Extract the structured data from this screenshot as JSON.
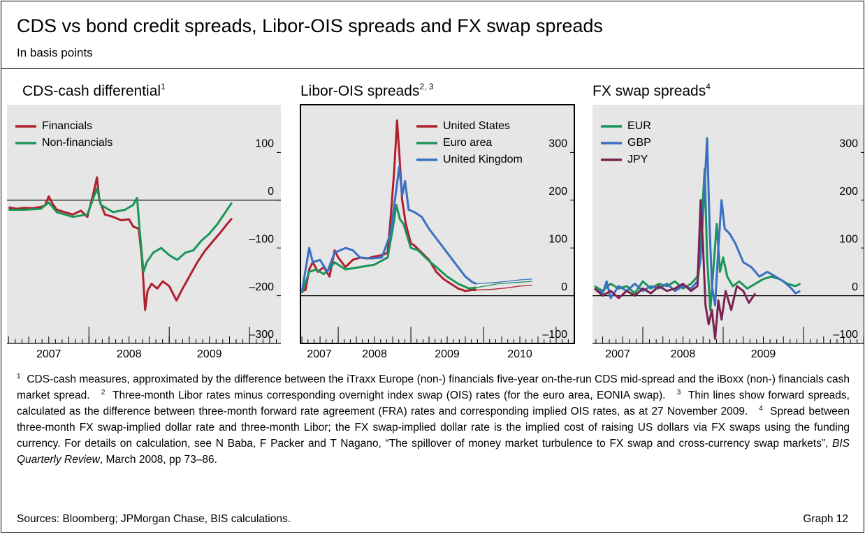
{
  "title": "CDS vs bond credit spreads, Libor-OIS spreads and FX swap spreads",
  "subtitle": "In basis points",
  "chart_data": [
    {
      "type": "line",
      "title": "CDS-cash differential",
      "title_note": "1",
      "xlim": [
        2006.98,
        2010.39
      ],
      "ylim": [
        -300,
        200
      ],
      "xticks": [
        {
          "value": 2007.5,
          "label": "2007"
        },
        {
          "value": 2008.5,
          "label": "2008"
        },
        {
          "value": 2009.5,
          "label": "2009"
        }
      ],
      "year_ticks": [
        2008,
        2009,
        2010
      ],
      "yticks": [
        {
          "value": -300,
          "label": "–300"
        },
        {
          "value": -200,
          "label": "–200"
        },
        {
          "value": -100,
          "label": "–100"
        },
        0,
        100
      ],
      "zero_line": true,
      "frame": false,
      "legend": "upper left",
      "series": [
        {
          "name": "Financials",
          "color": "#b01f2e",
          "x": [
            2007.0,
            2007.1,
            2007.2,
            2007.3,
            2007.4,
            2007.45,
            2007.5,
            2007.55,
            2007.6,
            2007.7,
            2007.8,
            2007.9,
            2007.98,
            2008.05,
            2008.1,
            2008.13,
            2008.2,
            2008.3,
            2008.4,
            2008.5,
            2008.55,
            2008.62,
            2008.66,
            2008.7,
            2008.73,
            2008.78,
            2008.85,
            2008.92,
            2009.0,
            2009.09,
            2009.15,
            2009.25,
            2009.35,
            2009.45,
            2009.55,
            2009.65,
            2009.72,
            2009.78
          ],
          "values": [
            -15,
            -18,
            -16,
            -17,
            -14,
            -12,
            8,
            -8,
            -20,
            -25,
            -30,
            -22,
            -35,
            10,
            48,
            0,
            -30,
            -35,
            -42,
            -40,
            -55,
            -60,
            -120,
            -230,
            -190,
            -175,
            -185,
            -170,
            -180,
            -210,
            -190,
            -160,
            -130,
            -105,
            -85,
            -65,
            -50,
            -38
          ]
        },
        {
          "name": "Non-financials",
          "color": "#1b9457",
          "x": [
            2007.0,
            2007.2,
            2007.4,
            2007.5,
            2007.6,
            2007.8,
            2007.98,
            2008.1,
            2008.15,
            2008.3,
            2008.45,
            2008.55,
            2008.6,
            2008.63,
            2008.68,
            2008.72,
            2008.8,
            2008.9,
            2009.0,
            2009.1,
            2009.2,
            2009.3,
            2009.4,
            2009.5,
            2009.6,
            2009.7,
            2009.78
          ],
          "values": [
            -20,
            -20,
            -18,
            -5,
            -25,
            -35,
            -30,
            25,
            -10,
            -25,
            -20,
            -10,
            5,
            -60,
            -150,
            -130,
            -110,
            -100,
            -115,
            -125,
            -110,
            -105,
            -85,
            -70,
            -50,
            -25,
            -5
          ]
        }
      ]
    },
    {
      "type": "line",
      "title": "Libor-OIS spreads",
      "title_note": "2, 3",
      "xlim": [
        2007.48,
        2011.25
      ],
      "ylim": [
        -100,
        400
      ],
      "xticks": [
        {
          "value": 2007.5,
          "label": "2007"
        },
        {
          "value": 2008.5,
          "label": "2008"
        },
        {
          "value": 2009.5,
          "label": "2009"
        },
        {
          "value": 2010.5,
          "label": "2010"
        }
      ],
      "year_ticks": [
        2008,
        2009,
        2010,
        2011
      ],
      "yticks": [
        {
          "value": -100,
          "label": "–100"
        },
        0,
        100,
        200,
        300
      ],
      "zero_line": true,
      "frame": true,
      "legend": "upper center",
      "series": [
        {
          "name": "United States",
          "color": "#b01f2e",
          "x": [
            2007.5,
            2007.55,
            2007.6,
            2007.65,
            2007.72,
            2007.8,
            2007.88,
            2007.95,
            2008.0,
            2008.1,
            2008.2,
            2008.3,
            2008.4,
            2008.5,
            2008.6,
            2008.68,
            2008.72,
            2008.77,
            2008.81,
            2008.84,
            2008.88,
            2008.93,
            2009.0,
            2009.05,
            2009.15,
            2009.25,
            2009.35,
            2009.45,
            2009.55,
            2009.65,
            2009.75,
            2009.85,
            2009.9
          ],
          "values": [
            10,
            12,
            55,
            70,
            50,
            60,
            40,
            95,
            80,
            60,
            75,
            80,
            78,
            82,
            85,
            90,
            160,
            260,
            367,
            300,
            200,
            150,
            110,
            105,
            90,
            75,
            50,
            35,
            25,
            15,
            10,
            12,
            12
          ],
          "forward": {
            "x": [
              2009.9,
              2010.1,
              2010.3,
              2010.5,
              2010.67
            ],
            "values": [
              12,
              13,
              16,
              20,
              22
            ]
          }
        },
        {
          "name": "Euro area",
          "color": "#1b9457",
          "x": [
            2007.5,
            2007.6,
            2007.7,
            2007.8,
            2007.9,
            2007.95,
            2008.1,
            2008.3,
            2008.5,
            2008.68,
            2008.75,
            2008.8,
            2008.85,
            2008.9,
            2009.0,
            2009.1,
            2009.2,
            2009.35,
            2009.5,
            2009.65,
            2009.8,
            2009.9
          ],
          "values": [
            5,
            50,
            55,
            45,
            60,
            70,
            55,
            60,
            65,
            80,
            140,
            190,
            160,
            150,
            100,
            95,
            80,
            60,
            40,
            25,
            15,
            17
          ],
          "forward": {
            "x": [
              2009.9,
              2010.2,
              2010.5,
              2010.67
            ],
            "values": [
              17,
              25,
              28,
              30
            ]
          }
        },
        {
          "name": "United Kingdom",
          "color": "#3a70c2",
          "x": [
            2007.5,
            2007.6,
            2007.65,
            2007.75,
            2007.85,
            2007.95,
            2008.1,
            2008.2,
            2008.3,
            2008.45,
            2008.6,
            2008.72,
            2008.78,
            2008.84,
            2008.88,
            2008.92,
            2008.97,
            2009.05,
            2009.15,
            2009.25,
            2009.35,
            2009.45,
            2009.55,
            2009.65,
            2009.75,
            2009.85,
            2009.9
          ],
          "values": [
            8,
            100,
            70,
            75,
            50,
            90,
            100,
            95,
            80,
            78,
            80,
            130,
            200,
            270,
            210,
            240,
            180,
            175,
            165,
            140,
            120,
            100,
            80,
            60,
            40,
            28,
            25
          ],
          "forward": {
            "x": [
              2009.9,
              2010.2,
              2010.5,
              2010.67
            ],
            "values": [
              25,
              28,
              33,
              35
            ]
          }
        }
      ]
    },
    {
      "type": "line",
      "title": "FX swap spreads",
      "title_note": "4",
      "xlim": [
        2007.374,
        2010.765
      ],
      "ylim": [
        -100,
        400
      ],
      "xticks": [
        {
          "value": 2007.5,
          "label": "2007"
        },
        {
          "value": 2008.5,
          "label": "2008"
        },
        {
          "value": 2009.5,
          "label": "2009"
        }
      ],
      "year_ticks": [
        2008,
        2009,
        2010
      ],
      "yticks": [
        {
          "value": -100,
          "label": "–100"
        },
        0,
        100,
        200,
        300
      ],
      "zero_line": true,
      "frame": false,
      "legend": "upper left",
      "series": [
        {
          "name": "EUR",
          "color": "#1b9457",
          "x": [
            2007.4,
            2007.5,
            2007.6,
            2007.7,
            2007.8,
            2007.9,
            2008.0,
            2008.1,
            2008.2,
            2008.3,
            2008.4,
            2008.5,
            2008.6,
            2008.68,
            2008.73,
            2008.77,
            2008.8,
            2008.84,
            2008.88,
            2008.92,
            2008.96,
            2009.0,
            2009.05,
            2009.12,
            2009.2,
            2009.3,
            2009.4,
            2009.5,
            2009.6,
            2009.7,
            2009.8,
            2009.9,
            2009.96
          ],
          "values": [
            20,
            10,
            25,
            15,
            20,
            5,
            30,
            15,
            25,
            20,
            30,
            15,
            25,
            40,
            150,
            265,
            80,
            -30,
            60,
            150,
            50,
            80,
            40,
            20,
            30,
            15,
            25,
            35,
            40,
            35,
            25,
            20,
            25
          ]
        },
        {
          "name": "GBP",
          "color": "#3a70c2",
          "x": [
            2007.4,
            2007.5,
            2007.55,
            2007.6,
            2007.7,
            2007.8,
            2007.9,
            2008.0,
            2008.1,
            2008.2,
            2008.3,
            2008.4,
            2008.5,
            2008.6,
            2008.68,
            2008.72,
            2008.76,
            2008.8,
            2008.83,
            2008.86,
            2008.9,
            2008.94,
            2008.98,
            2009.02,
            2009.08,
            2009.15,
            2009.25,
            2009.35,
            2009.45,
            2009.55,
            2009.65,
            2009.75,
            2009.85,
            2009.9,
            2009.96
          ],
          "values": [
            15,
            5,
            30,
            -5,
            20,
            10,
            25,
            10,
            20,
            15,
            25,
            10,
            20,
            15,
            30,
            80,
            200,
            330,
            150,
            20,
            -20,
            100,
            200,
            140,
            130,
            110,
            70,
            60,
            40,
            50,
            40,
            30,
            15,
            5,
            10
          ]
        },
        {
          "name": "JPY",
          "color": "#7a2350",
          "x": [
            2007.4,
            2007.5,
            2007.6,
            2007.7,
            2007.8,
            2007.9,
            2008.0,
            2008.1,
            2008.2,
            2008.3,
            2008.4,
            2008.5,
            2008.6,
            2008.68,
            2008.72,
            2008.75,
            2008.78,
            2008.82,
            2008.86,
            2008.9,
            2008.94,
            2008.98,
            2009.03,
            2009.1,
            2009.17,
            2009.25,
            2009.32,
            2009.4
          ],
          "values": [
            15,
            0,
            10,
            -5,
            10,
            0,
            15,
            5,
            20,
            10,
            15,
            25,
            10,
            20,
            200,
            100,
            -20,
            -60,
            -30,
            -90,
            -10,
            -50,
            10,
            -30,
            20,
            10,
            -15,
            5
          ]
        }
      ]
    }
  ],
  "notes": [
    {
      "mark": "1",
      "text": "CDS-cash measures, approximated by the difference between the iTraxx Europe (non-) financials five-year on-the-run CDS mid-spread and the iBoxx (non-) financials cash market spread."
    },
    {
      "mark": "2",
      "text": "Three-month Libor rates minus corresponding overnight index swap (OIS) rates (for the euro area, EONIA swap)."
    },
    {
      "mark": "3",
      "text": "Thin lines show forward spreads, calculated as the difference between three-month forward rate agreement (FRA) rates and corresponding implied OIS rates, as at 27 November 2009."
    },
    {
      "mark": "4",
      "text": "Spread between three-month FX swap-implied dollar rate and three-month Libor; the FX swap-implied dollar rate is the implied cost of raising US dollars via FX swaps using the funding currency. For details on calculation, see N Baba, F Packer and T Nagano, “The spillover of money market turbulence to FX swap and cross-currency swap markets”,",
      "italic": "BIS Quarterly Review",
      "text_after": ", March 2008, pp 73–86."
    }
  ],
  "sources": "Sources: Bloomberg; JPMorgan Chase, BIS calculations.",
  "graph_label": "Graph 12"
}
